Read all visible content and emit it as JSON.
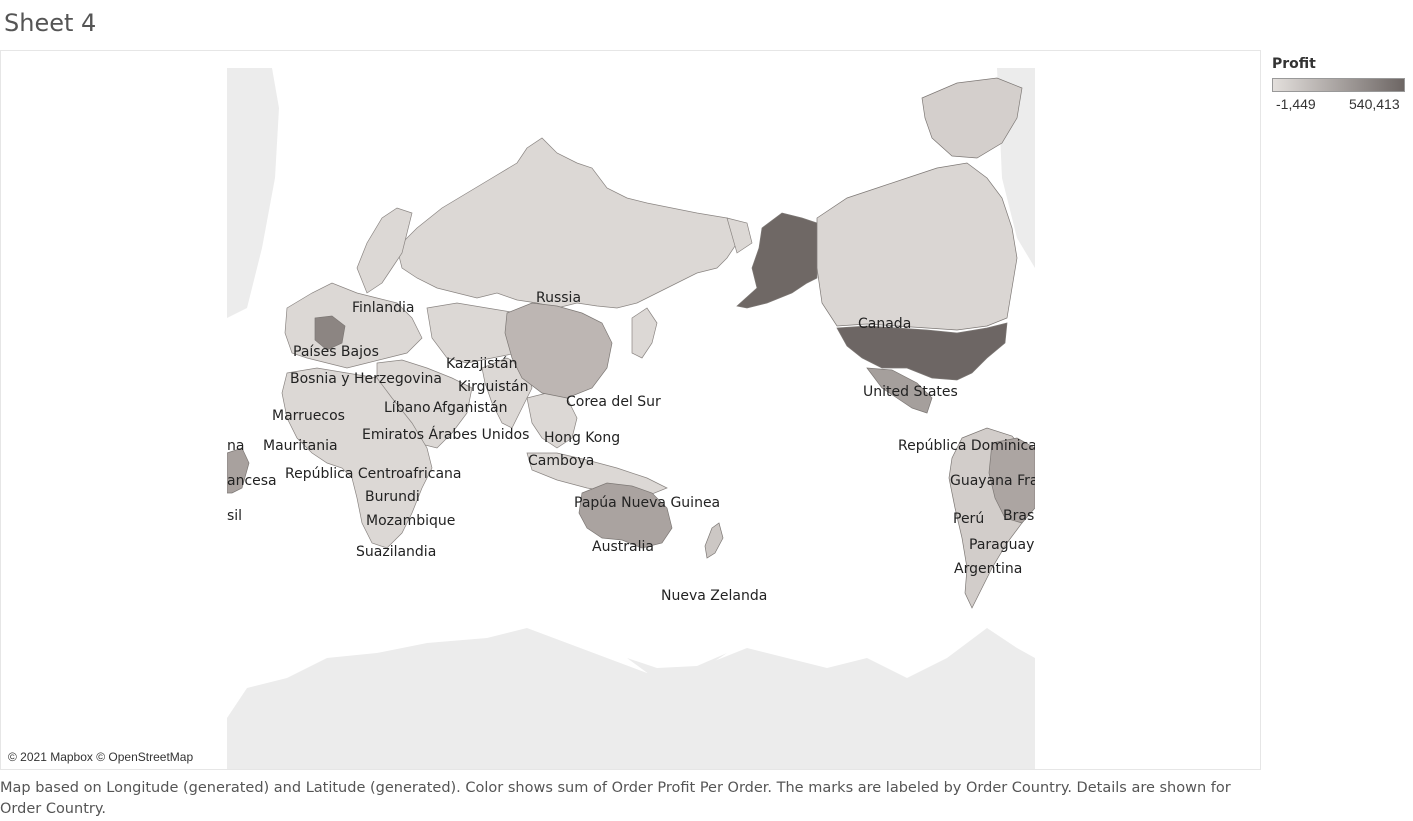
{
  "sheet": {
    "title": "Sheet 4"
  },
  "legend": {
    "title": "Profit",
    "min_label": "-1,449",
    "max_label": "540,413",
    "color_low": "#e3dfdc",
    "color_high": "#6d6664"
  },
  "map": {
    "attribution": "© 2021 Mapbox © OpenStreetMap",
    "land_color": "#d7d3d0",
    "background_land_color": "#ececec",
    "labels": {
      "russia": "Russia",
      "finlandia": "Finlandia",
      "paises_bajos": "Países Bajos",
      "bosnia": "Bosnia y Herzegovina",
      "kazajistan": "Kazajistán",
      "kirguistan": "Kirguistán",
      "libano": "Líbano",
      "afganistan": "Afganistán",
      "corea_del_sur": "Corea del Sur",
      "marruecos": "Marruecos",
      "emiratos": "Emiratos Árabes Unidos",
      "hong_kong": "Hong Kong",
      "mauritania": "Mauritania",
      "camboya": "Camboya",
      "republica_centroafricana": "República Centroafricana",
      "burundi": "Burundi",
      "papua": "Papúa Nueva Guinea",
      "mozambique": "Mozambique",
      "suazilandia": "Suazilandia",
      "australia": "Australia",
      "nueva_zelanda": "Nueva Zelanda",
      "canada": "Canada",
      "united_states": "United States",
      "republica_dominicana": "República Dominicana",
      "guayana": "Guayana Francesa",
      "brasil": "Brasil",
      "peru": "Perú",
      "paraguay": "Paraguay",
      "argentina": "Argentina",
      "cut_na": "na",
      "cut_ancesa": "ancesa",
      "cut_sil": "sil"
    }
  },
  "caption": "Map based on Longitude (generated) and Latitude (generated).  Color shows sum of Order Profit Per Order.  The marks are labeled by Order Country.  Details are shown for Order Country."
}
